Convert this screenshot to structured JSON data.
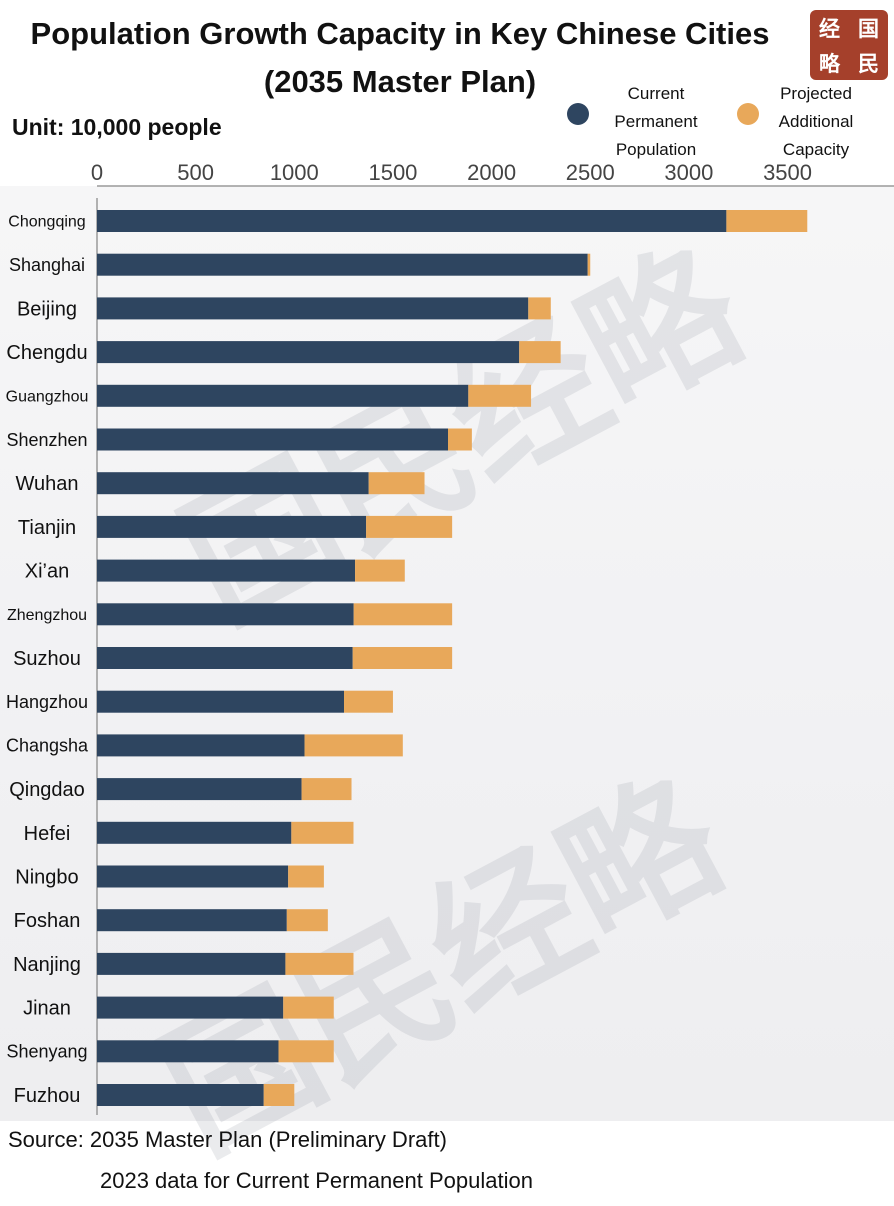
{
  "header": {
    "title_line1": "Population Growth Capacity in Key Chinese Cities",
    "title_line2": "(2035 Master Plan)",
    "unit": "Unit: 10,000 people",
    "logo_chars": [
      "经",
      "国",
      "略",
      "民"
    ]
  },
  "legend": {
    "current": {
      "label": "Current Permanent Population",
      "lines": [
        "Current",
        "Permanent",
        "Population"
      ],
      "color": "#2e4560"
    },
    "projected": {
      "label": "Projected Additional Capacity",
      "lines": [
        "Projected",
        "Additional",
        "Capacity"
      ],
      "color": "#e8a85a"
    }
  },
  "watermark_text": "国民经略",
  "footer": {
    "source_line1": "Source: 2035 Master Plan (Preliminary Draft)",
    "source_line2": "2023 data for Current Permanent Population"
  },
  "chart_data": {
    "type": "bar",
    "orientation": "horizontal",
    "stacked": true,
    "title": "Population Growth Capacity in Key Chinese Cities (2035 Master Plan)",
    "unit": "10,000 people",
    "x_ticks": [
      0,
      500,
      1000,
      1500,
      2000,
      2500,
      3000,
      3500
    ],
    "xlim": [
      0,
      3850
    ],
    "categories": [
      "Chongqing",
      "Shanghai",
      "Beijing",
      "Chengdu",
      "Guangzhou",
      "Shenzhen",
      "Wuhan",
      "Tianjin",
      "Xi’an",
      "Zhengzhou",
      "Suzhou",
      "Hangzhou",
      "Changsha",
      "Qingdao",
      "Hefei",
      "Ningbo",
      "Foshan",
      "Nanjing",
      "Jinan",
      "Shenyang",
      "Fuzhou"
    ],
    "series": [
      {
        "name": "Current Permanent Population",
        "color": "#2e4560",
        "values": [
          3190,
          2487,
          2186,
          2140,
          1882,
          1779,
          1377,
          1364,
          1308,
          1301,
          1296,
          1252,
          1052,
          1037,
          985,
          969,
          962,
          955,
          944,
          920,
          845
        ]
      },
      {
        "name": "Projected Additional Capacity",
        "color": "#e8a85a",
        "values": [
          410,
          13,
          114,
          210,
          318,
          121,
          283,
          436,
          252,
          499,
          504,
          248,
          498,
          253,
          315,
          181,
          208,
          345,
          256,
          280,
          155
        ]
      }
    ],
    "legend_position": "top-right",
    "grid": false
  }
}
